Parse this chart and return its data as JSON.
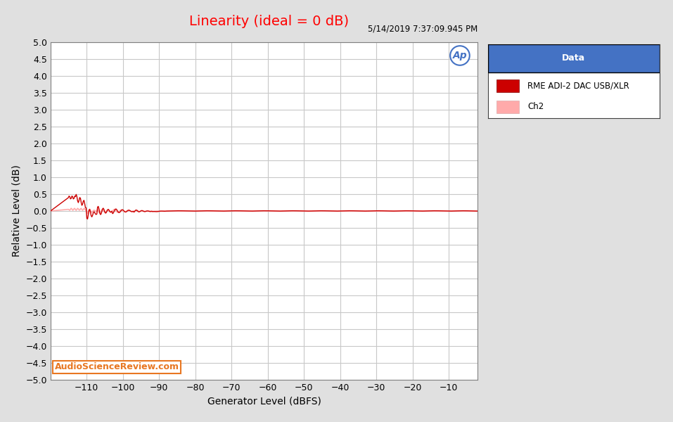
{
  "title": "Linearity (ideal = 0 dB)",
  "title_color": "#ff0000",
  "timestamp": "5/14/2019 7:37:09.945 PM",
  "xlabel": "Generator Level (dBFS)",
  "ylabel": "Relative Level (dB)",
  "xlim": [
    -120,
    -2
  ],
  "ylim": [
    -5.0,
    5.0
  ],
  "xticks": [
    -110,
    -100,
    -90,
    -80,
    -70,
    -60,
    -50,
    -40,
    -30,
    -20,
    -10
  ],
  "yticks": [
    -5.0,
    -4.5,
    -4.0,
    -3.5,
    -3.0,
    -2.5,
    -2.0,
    -1.5,
    -1.0,
    -0.5,
    0.0,
    0.5,
    1.0,
    1.5,
    2.0,
    2.5,
    3.0,
    3.5,
    4.0,
    4.5,
    5.0
  ],
  "background_color": "#ffffff",
  "grid_color": "#c8c8c8",
  "ch1_color": "#cc0000",
  "ch2_color": "#ffaaaa",
  "legend_title": "Data",
  "legend_title_bg": "#4472c4",
  "legend_title_color": "#ffffff",
  "ch1_label": "RME ADI-2 DAC USB/XLR",
  "ch2_label": "Ch2",
  "watermark": "AudioScienceReview.com",
  "watermark_color": "#e87722",
  "ap_logo_color": "#4472c4",
  "fig_bg_color": "#e0e0e0"
}
